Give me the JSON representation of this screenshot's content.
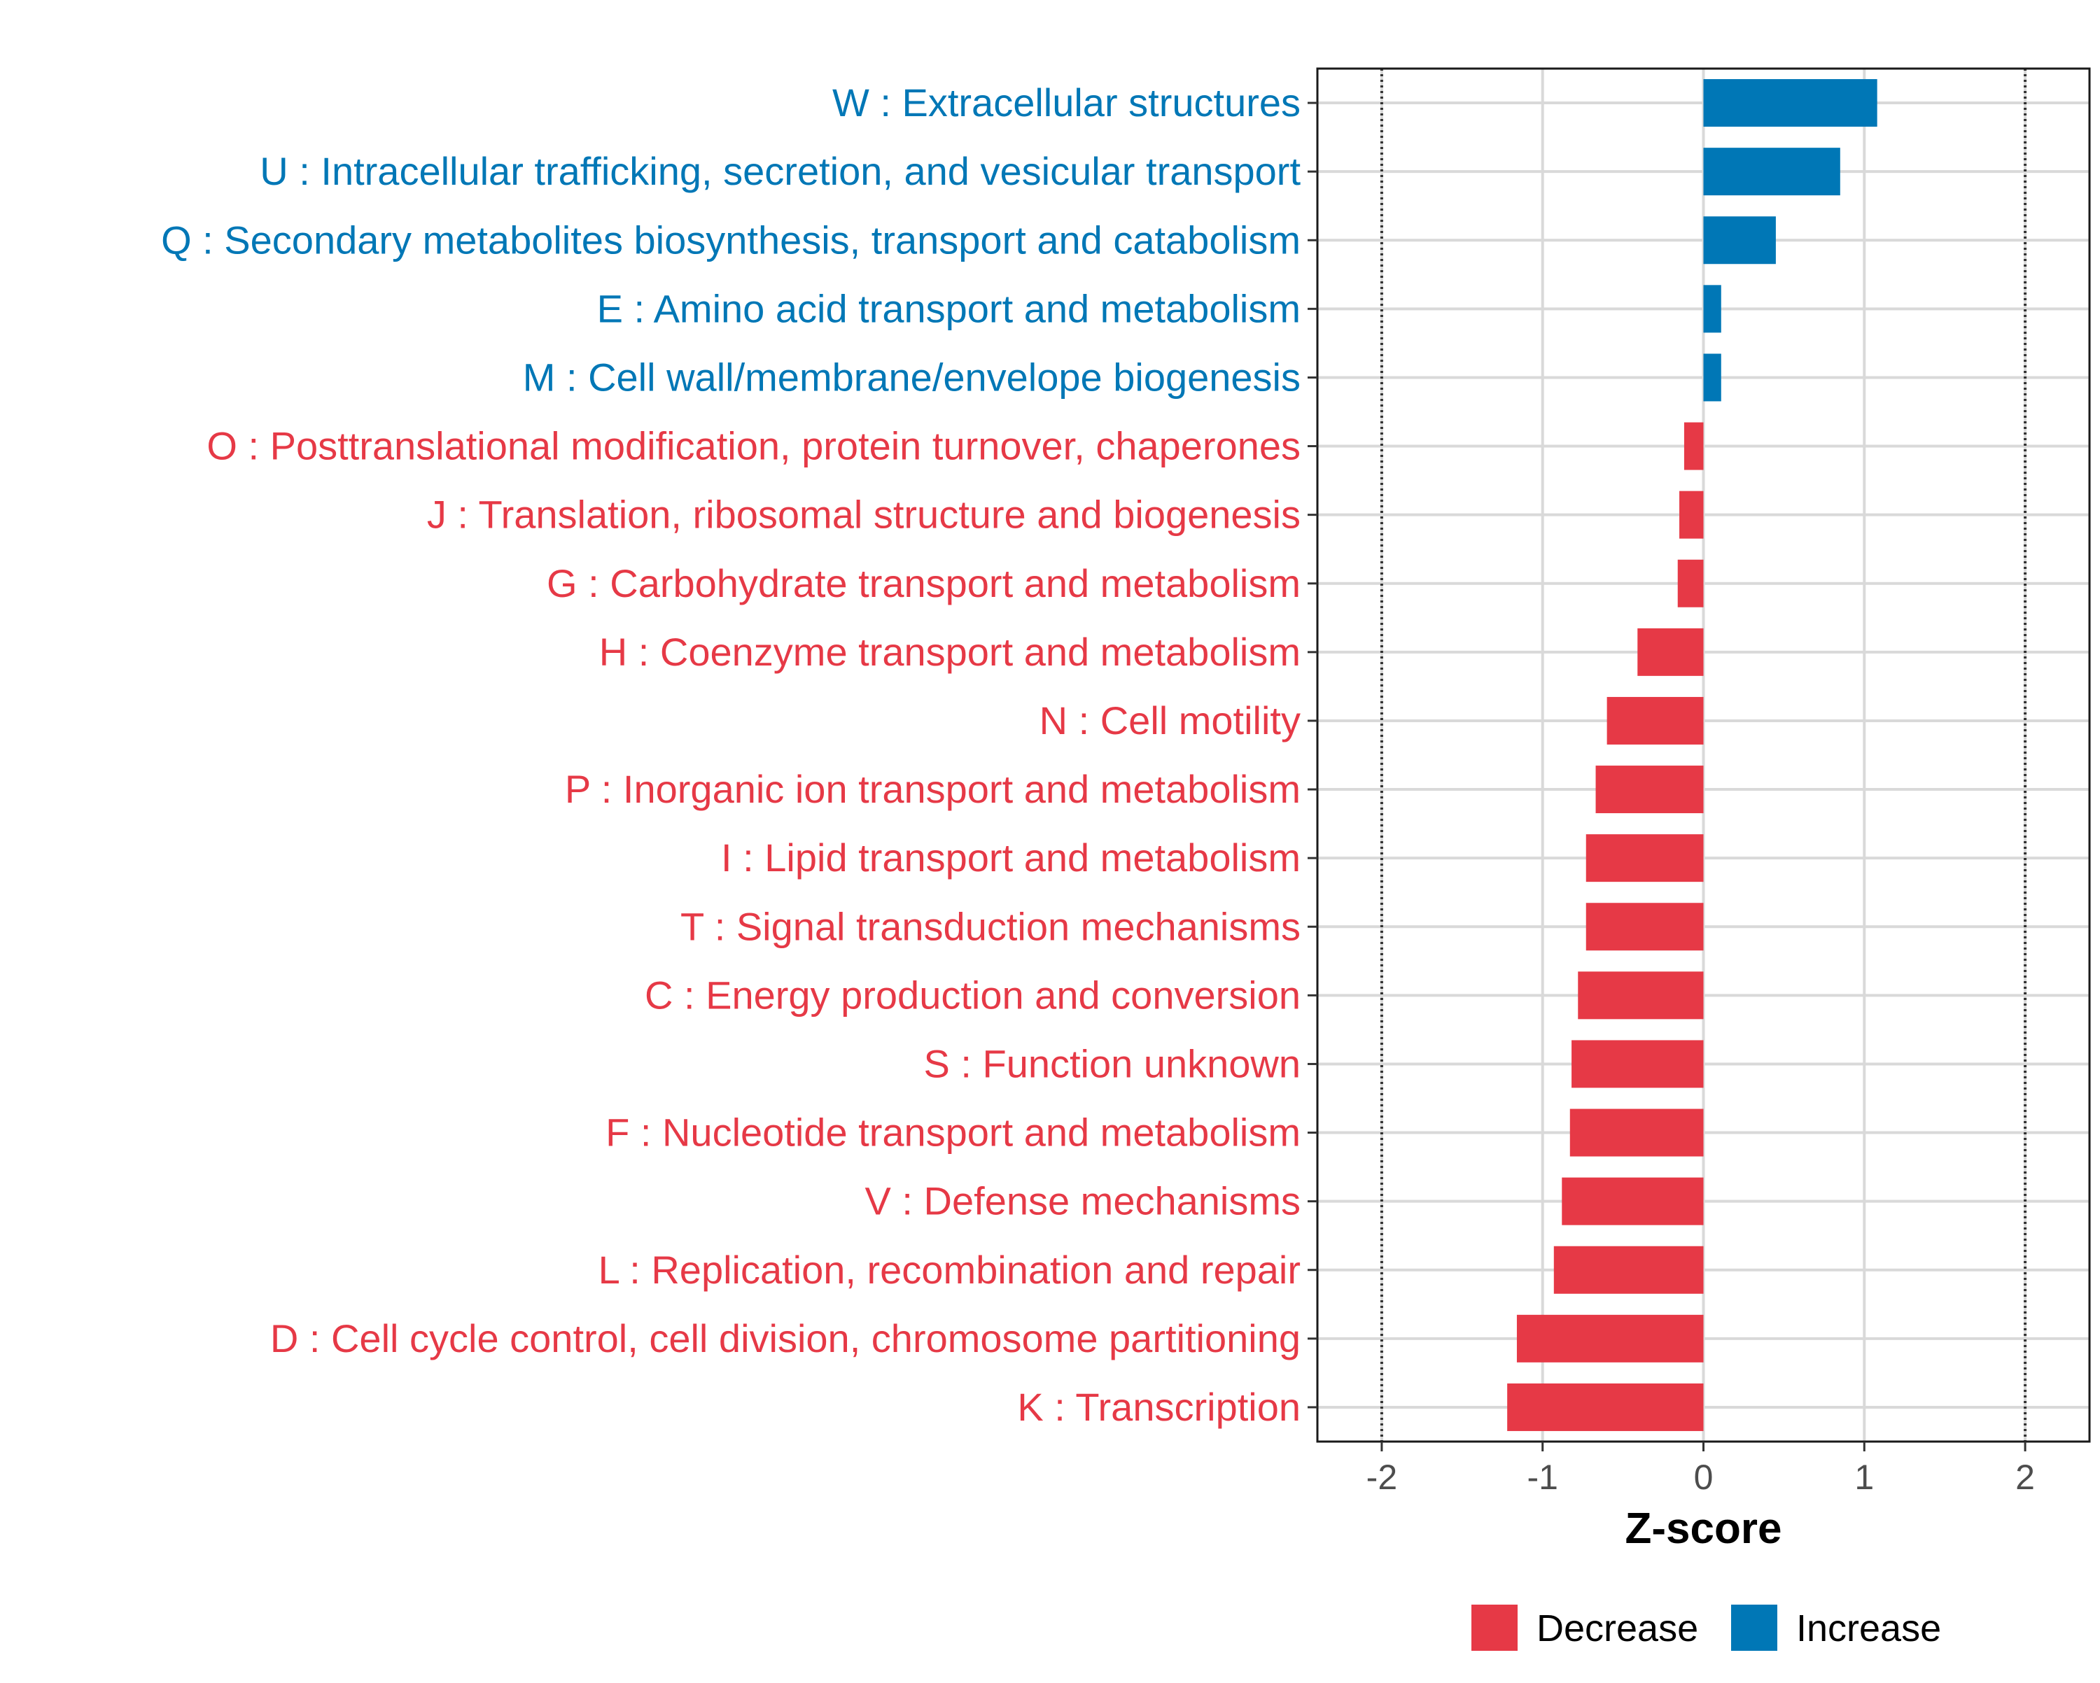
{
  "chart_data": {
    "type": "bar",
    "orientation": "horizontal",
    "xlabel": "Z-score",
    "xlim": [
      -2.4,
      2.4
    ],
    "xticks": [
      -2,
      -1,
      0,
      1,
      2
    ],
    "xtick_labels": [
      "-2",
      "-1",
      "0",
      "1",
      "2"
    ],
    "reference_lines": [
      -2,
      2
    ],
    "grid": true,
    "legend_position": "bottom",
    "colors": {
      "Decrease": "#e63946",
      "Increase": "#0077b6"
    },
    "legend": [
      {
        "key": "Decrease",
        "label": "Decrease",
        "color": "#e63946"
      },
      {
        "key": "Increase",
        "label": "Increase",
        "color": "#0077b6"
      }
    ],
    "categories": [
      "W : Extracellular structures",
      "U : Intracellular trafficking, secretion, and vesicular transport",
      "Q : Secondary metabolites biosynthesis, transport and catabolism",
      "E : Amino acid transport and metabolism",
      "M : Cell wall/membrane/envelope biogenesis",
      "O : Posttranslational modification, protein turnover, chaperones",
      "J : Translation, ribosomal structure and biogenesis",
      "G : Carbohydrate transport and metabolism",
      "H : Coenzyme transport and metabolism",
      "N : Cell motility",
      "P : Inorganic ion transport and metabolism",
      "I : Lipid transport and metabolism",
      "T : Signal transduction mechanisms",
      "C : Energy production and conversion",
      "S : Function unknown",
      "F : Nucleotide transport and metabolism",
      "V : Defense mechanisms",
      "L : Replication, recombination and repair",
      "D : Cell cycle control, cell division, chromosome partitioning",
      "K : Transcription"
    ],
    "values": [
      1.08,
      0.85,
      0.45,
      0.11,
      0.11,
      -0.12,
      -0.15,
      -0.16,
      -0.41,
      -0.6,
      -0.67,
      -0.73,
      -0.73,
      -0.78,
      -0.82,
      -0.83,
      -0.88,
      -0.93,
      -1.16,
      -1.22
    ],
    "groups": [
      "Increase",
      "Increase",
      "Increase",
      "Increase",
      "Increase",
      "Decrease",
      "Decrease",
      "Decrease",
      "Decrease",
      "Decrease",
      "Decrease",
      "Decrease",
      "Decrease",
      "Decrease",
      "Decrease",
      "Decrease",
      "Decrease",
      "Decrease",
      "Decrease",
      "Decrease"
    ]
  }
}
